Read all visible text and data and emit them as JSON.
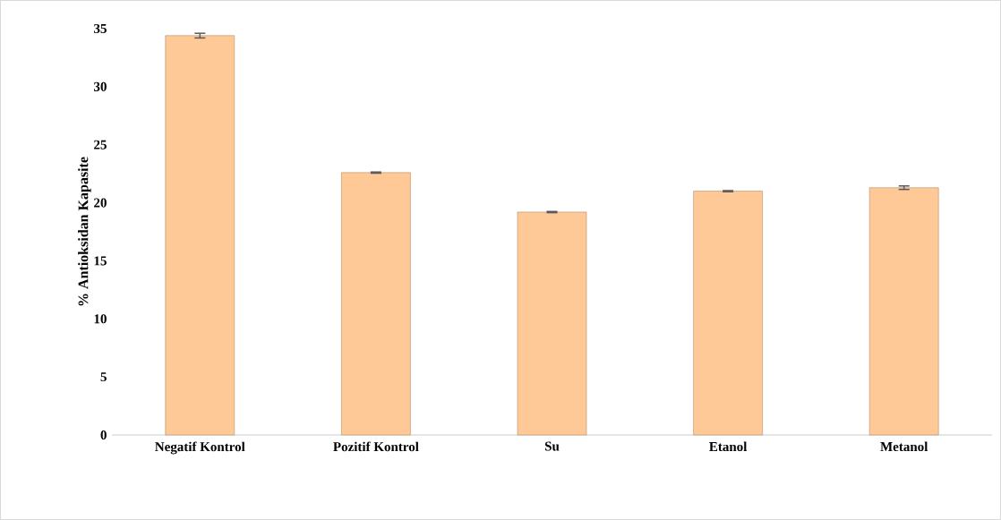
{
  "chart_data": {
    "type": "bar",
    "ylabel": "% Antioksidan Kapasite",
    "categories": [
      "Negatif Kontrol",
      "Pozitif Kontrol",
      "Su",
      "Etanol",
      "Metanol"
    ],
    "values": [
      34.4,
      22.6,
      19.2,
      21.0,
      21.3
    ],
    "errors": [
      0.2,
      0.05,
      0.05,
      0.05,
      0.15
    ],
    "color": "#fec997",
    "ylim": [
      0,
      35
    ],
    "yticks": [
      0,
      5,
      10,
      15,
      20,
      25,
      30,
      35
    ]
  }
}
